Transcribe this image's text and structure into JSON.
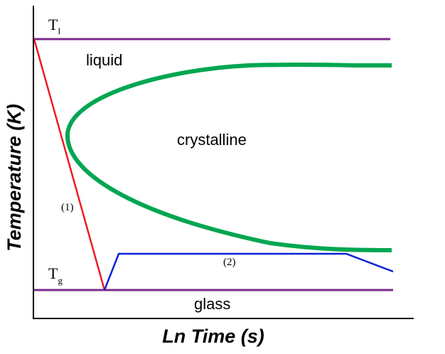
{
  "axes": {
    "y_label": "Temperature (K)",
    "x_label": "Ln Time (s)"
  },
  "levels": {
    "liquidus": {
      "symbol": "T",
      "subscript": "l"
    },
    "glass_transition": {
      "symbol": "T",
      "subscript": "g"
    }
  },
  "regions": {
    "liquid": "liquid",
    "crystalline": "crystalline",
    "glass": "glass"
  },
  "paths": {
    "path1_label": "(1)",
    "path2_label": "(2)"
  },
  "colors": {
    "axis": "#000000",
    "level_lines": "#7b2a8c",
    "crystallization_curve": "#00a651",
    "path1": "#ee1c24",
    "path2": "#0a22d6"
  }
}
